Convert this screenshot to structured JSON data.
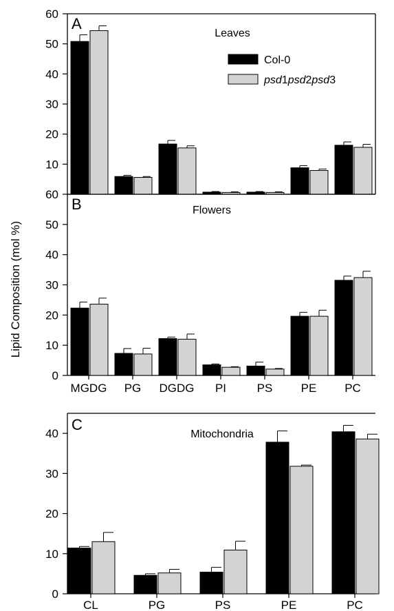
{
  "ylabel": "Lipid Composition (mol %)",
  "legend": {
    "entries": [
      {
        "name": "Col-0",
        "color": "#000000"
      },
      {
        "name_parts": [
          {
            "text": "psd",
            "italic": true
          },
          {
            "text": "1",
            "italic": false
          },
          {
            "text": "psd",
            "italic": true
          },
          {
            "text": "2",
            "italic": false
          },
          {
            "text": "psd",
            "italic": true
          },
          {
            "text": "3",
            "italic": false
          }
        ],
        "color": "#d3d3d3"
      }
    ]
  },
  "chart_data": [
    {
      "type": "bar",
      "panel": "A",
      "title": "Leaves",
      "categories": [
        "MGDG",
        "PG",
        "DGDG",
        "PI",
        "PS",
        "PE",
        "PC"
      ],
      "ylim": [
        0,
        60
      ],
      "yticks": [
        10,
        20,
        30,
        40,
        50,
        60
      ],
      "series": [
        {
          "name": "Col-0",
          "color": "#000000",
          "values": [
            50.8,
            5.9,
            16.7,
            0.7,
            0.7,
            8.8,
            16.3
          ],
          "errors": [
            2.2,
            0.4,
            1.2,
            0.2,
            0.2,
            0.7,
            1.1
          ]
        },
        {
          "name": "psd1psd2psd3",
          "color": "#d3d3d3",
          "values": [
            54.4,
            5.6,
            15.4,
            0.6,
            0.6,
            7.9,
            15.6
          ],
          "errors": [
            1.6,
            0.3,
            0.7,
            0.2,
            0.2,
            0.5,
            1.0
          ]
        }
      ]
    },
    {
      "type": "bar",
      "panel": "B",
      "title": "Flowers",
      "categories": [
        "MGDG",
        "PG",
        "DGDG",
        "PI",
        "PS",
        "PE",
        "PC"
      ],
      "ylim": [
        0,
        60
      ],
      "yticks": [
        0,
        10,
        20,
        30,
        40,
        50,
        60
      ],
      "series": [
        {
          "name": "Col-0",
          "color": "#000000",
          "values": [
            22.3,
            7.3,
            12.2,
            3.5,
            3.1,
            19.6,
            31.5
          ],
          "errors": [
            2.0,
            1.6,
            0.5,
            0.3,
            1.3,
            1.3,
            1.4
          ]
        },
        {
          "name": "psd1psd2psd3",
          "color": "#d3d3d3",
          "values": [
            23.6,
            7.1,
            12.0,
            2.7,
            2.1,
            19.6,
            32.4
          ],
          "errors": [
            2.0,
            1.9,
            1.7,
            0.2,
            0.2,
            2.0,
            2.1
          ]
        }
      ]
    },
    {
      "type": "bar",
      "panel": "C",
      "title": "Mitochondria",
      "categories": [
        "CL",
        "PG",
        "PS",
        "PE",
        "PC"
      ],
      "ylim": [
        0,
        45
      ],
      "yticks": [
        0,
        10,
        20,
        30,
        40
      ],
      "series": [
        {
          "name": "Col-0",
          "color": "#000000",
          "values": [
            11.4,
            4.6,
            5.4,
            37.8,
            40.4
          ],
          "errors": [
            0.4,
            0.4,
            1.2,
            2.8,
            1.6
          ]
        },
        {
          "name": "psd1psd2psd3",
          "color": "#d3d3d3",
          "values": [
            13.0,
            5.2,
            10.9,
            31.8,
            38.6
          ],
          "errors": [
            2.3,
            0.9,
            2.2,
            0.3,
            1.2
          ]
        }
      ]
    }
  ]
}
